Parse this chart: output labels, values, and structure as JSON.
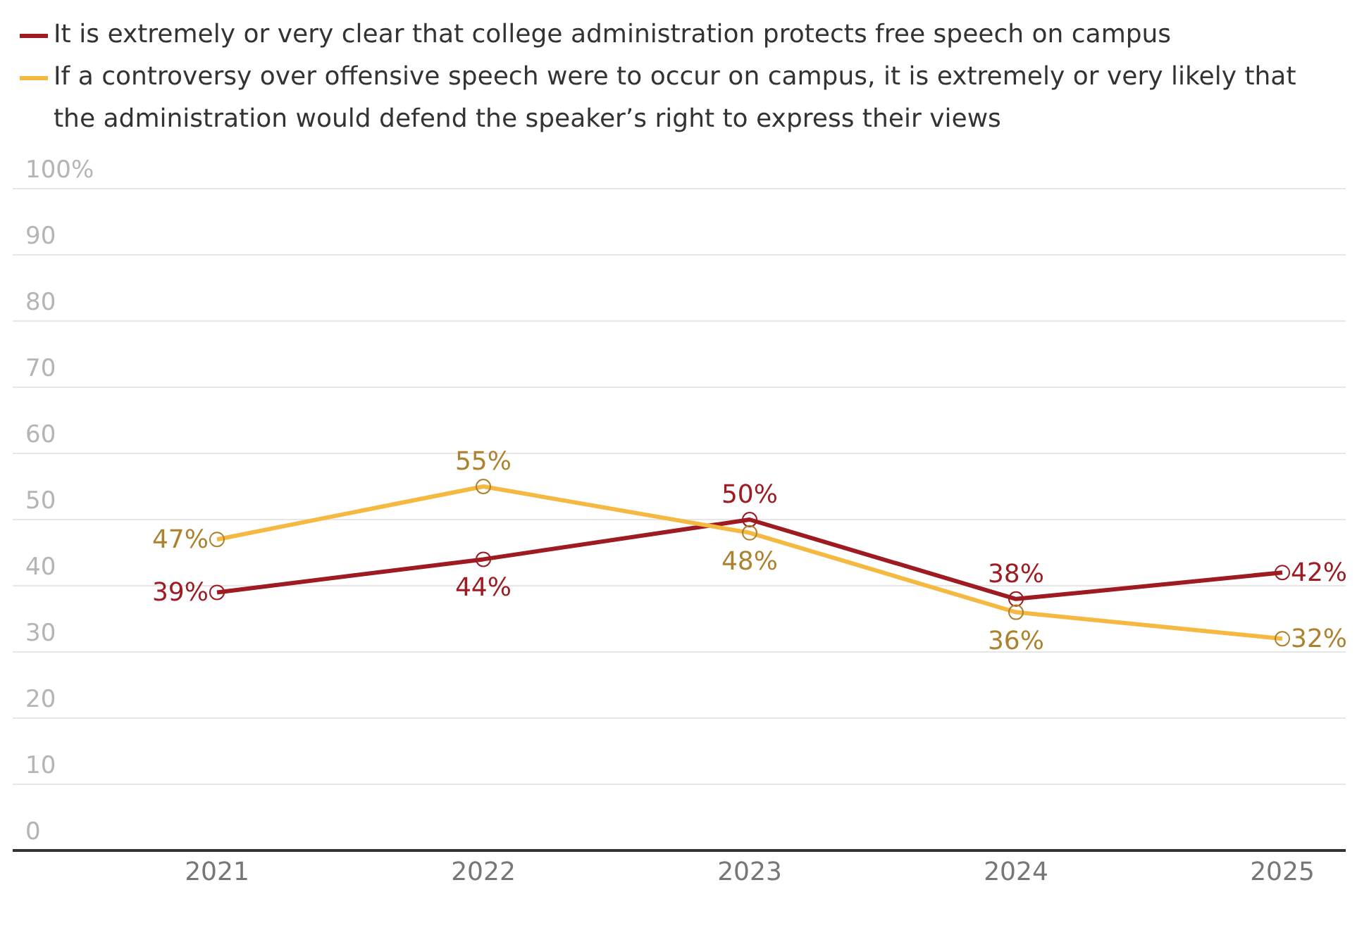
{
  "chart_data": {
    "type": "line",
    "categories": [
      "2021",
      "2022",
      "2023",
      "2024",
      "2025"
    ],
    "series": [
      {
        "name": "It is extremely or very clear that college administration protects free speech on campus",
        "color": "#9e1b22",
        "values": [
          39,
          44,
          50,
          38,
          42
        ],
        "value_labels": [
          "39%",
          "44%",
          "50%",
          "38%",
          "42%"
        ]
      },
      {
        "name": "If a controversy over offensive speech were to occur on campus, it is extremely or very likely that the administration would defend the speaker’s right to express their views",
        "color": "#f5b942",
        "values": [
          47,
          55,
          48,
          36,
          32
        ],
        "value_labels": [
          "47%",
          "55%",
          "48%",
          "36%",
          "32%"
        ]
      }
    ],
    "ylim": [
      0,
      100
    ],
    "yticks": [
      0,
      10,
      20,
      30,
      40,
      50,
      60,
      70,
      80,
      90,
      {
        "value": 100,
        "label": "100%"
      }
    ],
    "grid": "y",
    "legend": "top",
    "marker": "circle",
    "line_style": "solid"
  }
}
